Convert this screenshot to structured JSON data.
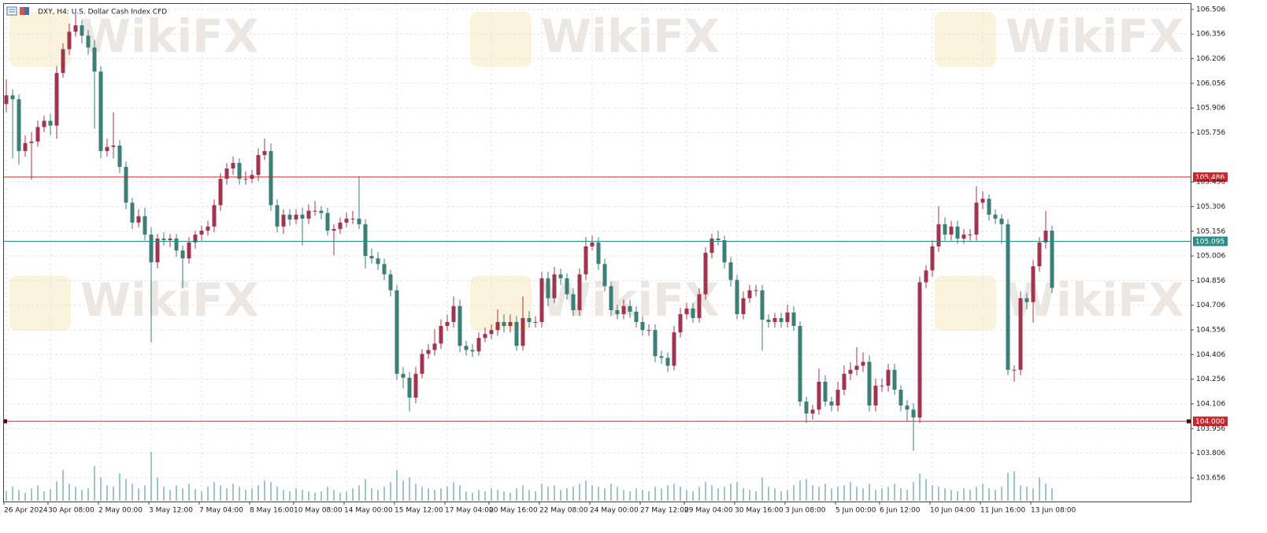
{
  "chart_data": {
    "type": "candlestick",
    "title": "DXY, H4:  U.S. Dollar Cash Index CFD",
    "watermark": "WikiFX",
    "up_color": "#a1344f",
    "down_color": "#3b7f78",
    "volume_color": "#3b8f84",
    "grid": true,
    "ylim": [
      103.512,
      106.544
    ],
    "yticks": [
      106.506,
      106.356,
      106.206,
      106.056,
      105.906,
      105.756,
      105.456,
      105.306,
      105.156,
      105.006,
      104.856,
      104.706,
      104.556,
      104.406,
      104.256,
      104.106,
      103.956,
      103.806,
      103.656
    ],
    "xticks": [
      {
        "value": 0,
        "label": "26 Apr 2024"
      },
      {
        "value": 7,
        "label": "30 Apr 08:00"
      },
      {
        "value": 15,
        "label": "2 May 00:00"
      },
      {
        "value": 23,
        "label": "3 May 12:00"
      },
      {
        "value": 31,
        "label": "7 May 04:00"
      },
      {
        "value": 39,
        "label": "8 May 16:00"
      },
      {
        "value": 46,
        "label": "10 May 08:00"
      },
      {
        "value": 54,
        "label": "14 May 00:00"
      },
      {
        "value": 62,
        "label": "15 May 12:00"
      },
      {
        "value": 70,
        "label": "17 May 04:00"
      },
      {
        "value": 77,
        "label": "20 May 16:00"
      },
      {
        "value": 85,
        "label": "22 May 08:00"
      },
      {
        "value": 93,
        "label": "24 May 00:00"
      },
      {
        "value": 101,
        "label": "27 May 12:00"
      },
      {
        "value": 108,
        "label": "29 May 04:00"
      },
      {
        "value": 116,
        "label": "30 May 16:00"
      },
      {
        "value": 124,
        "label": "3 Jun 08:00"
      },
      {
        "value": 132,
        "label": "5 Jun 00:00"
      },
      {
        "value": 139,
        "label": "6 Jun 12:00"
      },
      {
        "value": 147,
        "label": "10 Jun 04:00"
      },
      {
        "value": 155,
        "label": "11 Jun 16:00"
      },
      {
        "value": 163,
        "label": "13 Jun 08:00"
      }
    ],
    "levels": [
      {
        "value": 105.486,
        "color": "#c8282d"
      },
      {
        "value": 105.095,
        "color": "#2a8c86"
      },
      {
        "value": 104,
        "label": "104.000",
        "color": "#c8282d"
      }
    ],
    "open": [
      105.93,
      105.983,
      105.959,
      105.644,
      105.693,
      105.702,
      105.79,
      105.828,
      105.799,
      106.119,
      106.264,
      106.37,
      106.409,
      106.346,
      106.274,
      106.128,
      105.644,
      105.669,
      105.678,
      105.548,
      105.33,
      105.209,
      105.248,
      105.136,
      104.967,
      105.112,
      105.102,
      105.112,
      105.039,
      104.991,
      105.088,
      105.136,
      105.16,
      105.185,
      105.315,
      105.475,
      105.538,
      105.572,
      105.475,
      105.475,
      105.499,
      105.62,
      105.644,
      105.315,
      105.185,
      105.257,
      105.228,
      105.257,
      105.233,
      105.281,
      105.281,
      105.267,
      105.16,
      105.17,
      105.209,
      105.233,
      105.233,
      105.199,
      105.006,
      104.991,
      104.957,
      104.894,
      104.797,
      104.289,
      104.265,
      104.144,
      104.289,
      104.41,
      104.434,
      104.473,
      104.58,
      104.604,
      104.701,
      104.459,
      104.434,
      104.425,
      104.507,
      104.531,
      104.555,
      104.604,
      104.58,
      104.604,
      104.459,
      104.628,
      104.604,
      104.604,
      104.87,
      104.749,
      104.894,
      104.87,
      104.773,
      104.676,
      104.894,
      105.064,
      105.088,
      104.957,
      104.822,
      104.676,
      104.652,
      104.701,
      104.667,
      104.604,
      104.555,
      104.555,
      104.396,
      104.386,
      104.338,
      104.541,
      104.652,
      104.686,
      104.628,
      104.773,
      105.025,
      105.112,
      105.102,
      104.967,
      104.86,
      104.652,
      104.749,
      104.797,
      104.797,
      104.618,
      104.604,
      104.628,
      104.604,
      104.662,
      104.58,
      104.12,
      104.047,
      104.071,
      104.241,
      104.12,
      104.096,
      104.192,
      104.289,
      104.313,
      104.338,
      104.362,
      104.096,
      104.217,
      104.217,
      104.313,
      104.192,
      104.096,
      104.071,
      104.023,
      104.846,
      104.918,
      105.064,
      105.199,
      105.136,
      105.185,
      105.112,
      105.136,
      105.136,
      105.33,
      105.354,
      105.257,
      105.233,
      105.199,
      104.313,
      104.313,
      104.749,
      104.725,
      104.943,
      105.088,
      105.16
    ],
    "high": [
      106.08,
      106.02,
      105.99,
      105.74,
      105.76,
      105.83,
      105.86,
      105.87,
      106.16,
      106.3,
      106.42,
      106.48,
      106.44,
      106.38,
      106.32,
      106.16,
      105.72,
      105.88,
      105.71,
      105.58,
      105.36,
      105.29,
      105.3,
      105.18,
      105.14,
      105.15,
      105.14,
      105.14,
      105.07,
      105.12,
      105.16,
      105.19,
      105.22,
      105.35,
      105.51,
      105.57,
      105.61,
      105.6,
      105.52,
      105.53,
      105.66,
      105.72,
      105.69,
      105.35,
      105.29,
      105.29,
      105.29,
      105.3,
      105.32,
      105.34,
      105.31,
      105.3,
      105.2,
      105.24,
      105.27,
      105.28,
      105.49,
      105.23,
      105.05,
      105.03,
      104.99,
      104.92,
      104.83,
      104.33,
      104.3,
      104.33,
      104.44,
      104.47,
      104.56,
      104.62,
      104.65,
      104.76,
      104.74,
      104.49,
      104.47,
      104.54,
      104.57,
      104.59,
      104.68,
      104.65,
      104.65,
      104.64,
      104.76,
      104.67,
      104.64,
      104.91,
      104.91,
      104.94,
      104.93,
      104.9,
      104.81,
      104.93,
      105.12,
      105.13,
      105.12,
      104.99,
      104.85,
      104.71,
      104.74,
      104.74,
      104.7,
      104.64,
      104.59,
      104.59,
      104.43,
      104.42,
      104.58,
      104.69,
      104.72,
      104.72,
      104.81,
      105.06,
      105.14,
      105.16,
      105.13,
      105.0,
      104.89,
      104.79,
      104.83,
      104.83,
      104.83,
      104.65,
      104.66,
      104.66,
      104.71,
      104.7,
      104.61,
      104.15,
      104.1,
      104.32,
      104.28,
      104.15,
      104.24,
      104.34,
      104.36,
      104.45,
      104.42,
      104.4,
      104.26,
      104.26,
      104.35,
      104.35,
      104.22,
      104.13,
      104.11,
      104.88,
      104.95,
      105.1,
      105.31,
      105.24,
      105.22,
      105.22,
      105.17,
      105.17,
      105.43,
      105.4,
      105.38,
      105.29,
      105.26,
      105.23,
      104.34,
      104.79,
      104.78,
      104.98,
      105.12,
      105.28,
      105.19
    ],
    "low": [
      105.88,
      105.6,
      105.56,
      105.61,
      105.47,
      105.67,
      105.76,
      105.74,
      105.72,
      106.09,
      106.23,
      106.34,
      106.3,
      106.23,
      105.78,
      105.6,
      105.61,
      105.6,
      105.51,
      105.29,
      105.17,
      105.18,
      105.1,
      104.48,
      104.93,
      105.07,
      105.06,
      105.0,
      104.81,
      104.96,
      105.05,
      105.1,
      105.13,
      105.15,
      105.28,
      105.44,
      105.5,
      105.44,
      105.44,
      105.45,
      105.46,
      105.59,
      105.28,
      105.15,
      105.14,
      105.19,
      105.2,
      105.07,
      105.2,
      105.25,
      105.23,
      105.13,
      105.01,
      105.14,
      105.18,
      105.2,
      105.17,
      104.93,
      104.96,
      104.92,
      104.86,
      104.76,
      104.25,
      104.2,
      104.06,
      104.11,
      104.26,
      104.38,
      104.4,
      104.44,
      104.55,
      104.57,
      104.42,
      104.4,
      104.39,
      104.4,
      104.48,
      104.5,
      104.52,
      104.54,
      104.54,
      104.43,
      104.43,
      104.57,
      104.57,
      104.57,
      104.7,
      104.72,
      104.83,
      104.74,
      104.64,
      104.64,
      104.86,
      105.04,
      104.92,
      104.79,
      104.64,
      104.62,
      104.62,
      104.63,
      104.57,
      104.52,
      104.52,
      104.36,
      104.35,
      104.3,
      104.31,
      104.51,
      104.62,
      104.6,
      104.6,
      104.74,
      104.99,
      105.07,
      104.93,
      104.82,
      104.62,
      104.62,
      104.72,
      104.76,
      104.43,
      104.57,
      104.57,
      104.57,
      104.57,
      104.55,
      104.09,
      103.99,
      104.01,
      104.04,
      104.09,
      104.06,
      104.06,
      104.16,
      104.25,
      104.28,
      104.3,
      104.06,
      104.06,
      104.18,
      104.18,
      104.16,
      104.06,
      104.0,
      103.82,
      103.99,
      104.81,
      104.88,
      105.03,
      105.1,
      105.1,
      105.08,
      105.08,
      105.1,
      105.1,
      105.29,
      105.22,
      105.2,
      105.08,
      104.28,
      104.24,
      104.28,
      104.68,
      104.6,
      104.91,
      105.05,
      104.78
    ],
    "close": [
      105.983,
      105.959,
      105.644,
      105.693,
      105.702,
      105.79,
      105.828,
      105.799,
      106.119,
      106.264,
      106.37,
      106.409,
      106.346,
      106.274,
      106.128,
      105.644,
      105.669,
      105.678,
      105.548,
      105.33,
      105.209,
      105.248,
      105.136,
      104.967,
      105.112,
      105.102,
      105.112,
      105.039,
      104.991,
      105.088,
      105.136,
      105.16,
      105.185,
      105.315,
      105.475,
      105.538,
      105.572,
      105.475,
      105.475,
      105.499,
      105.62,
      105.644,
      105.315,
      105.185,
      105.257,
      105.228,
      105.257,
      105.233,
      105.281,
      105.281,
      105.267,
      105.16,
      105.17,
      105.209,
      105.233,
      105.233,
      105.199,
      105.006,
      104.991,
      104.957,
      104.894,
      104.797,
      104.289,
      104.265,
      104.144,
      104.289,
      104.41,
      104.434,
      104.473,
      104.58,
      104.604,
      104.701,
      104.459,
      104.434,
      104.425,
      104.507,
      104.531,
      104.555,
      104.604,
      104.58,
      104.604,
      104.459,
      104.628,
      104.604,
      104.604,
      104.87,
      104.749,
      104.894,
      104.87,
      104.773,
      104.676,
      104.894,
      105.064,
      105.088,
      104.957,
      104.822,
      104.676,
      104.652,
      104.701,
      104.667,
      104.604,
      104.555,
      104.555,
      104.396,
      104.386,
      104.338,
      104.541,
      104.652,
      104.686,
      104.628,
      104.773,
      105.025,
      105.112,
      105.102,
      104.967,
      104.86,
      104.652,
      104.749,
      104.797,
      104.797,
      104.618,
      104.604,
      104.628,
      104.604,
      104.662,
      104.58,
      104.12,
      104.047,
      104.071,
      104.241,
      104.12,
      104.096,
      104.192,
      104.289,
      104.313,
      104.338,
      104.362,
      104.096,
      104.217,
      104.217,
      104.313,
      104.192,
      104.096,
      104.071,
      104.023,
      104.846,
      104.918,
      105.064,
      105.199,
      105.136,
      105.185,
      105.112,
      105.136,
      105.136,
      105.33,
      105.354,
      105.257,
      105.233,
      105.199,
      104.313,
      104.313,
      104.749,
      104.725,
      104.943,
      105.088,
      105.16,
      104.812
    ],
    "volume": [
      12,
      18,
      14,
      10,
      16,
      20,
      12,
      15,
      25,
      40,
      22,
      18,
      14,
      16,
      45,
      30,
      20,
      18,
      35,
      28,
      22,
      16,
      20,
      63,
      30,
      18,
      14,
      20,
      16,
      22,
      15,
      12,
      18,
      24,
      20,
      16,
      22,
      18,
      14,
      16,
      20,
      26,
      24,
      18,
      14,
      12,
      16,
      14,
      12,
      10,
      12,
      18,
      14,
      10,
      12,
      16,
      20,
      28,
      16,
      14,
      18,
      24,
      40,
      26,
      30,
      22,
      18,
      16,
      14,
      16,
      18,
      24,
      20,
      12,
      10,
      14,
      12,
      16,
      14,
      12,
      10,
      16,
      20,
      14,
      12,
      22,
      18,
      20,
      14,
      16,
      18,
      22,
      26,
      20,
      18,
      16,
      22,
      18,
      14,
      12,
      16,
      14,
      12,
      18,
      16,
      20,
      22,
      18,
      14,
      12,
      18,
      24,
      20,
      16,
      18,
      22,
      24,
      16,
      14,
      12,
      30,
      18,
      16,
      12,
      14,
      20,
      26,
      28,
      20,
      18,
      22,
      16,
      18,
      20,
      24,
      18,
      16,
      22,
      14,
      16,
      18,
      22,
      16,
      14,
      24,
      35,
      28,
      20,
      18,
      16,
      14,
      12,
      16,
      14,
      18,
      22,
      16,
      14,
      18,
      36,
      38,
      20,
      18,
      16,
      30,
      22,
      16
    ]
  }
}
